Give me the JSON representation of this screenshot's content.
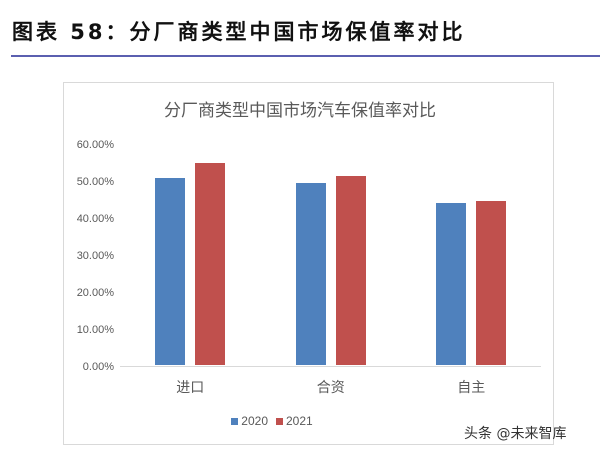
{
  "figure": {
    "title": "图表 58：分厂商类型中国市场保值率对比",
    "rule_color": "#5b5fb0"
  },
  "chart_data": {
    "type": "bar",
    "title": "分厂商类型中国市场汽车保值率对比",
    "categories": [
      "进口",
      "合资",
      "自主"
    ],
    "series": [
      {
        "name": "2020",
        "color": "#4f81bd",
        "values": [
          51.1,
          49.7,
          44.3
        ]
      },
      {
        "name": "2021",
        "color": "#c0504d",
        "values": [
          55.1,
          51.6,
          44.9
        ]
      }
    ],
    "xlabel": "",
    "ylabel": "",
    "ylim": [
      0,
      60
    ],
    "yticks": [
      "0.00%",
      "10.00%",
      "20.00%",
      "30.00%",
      "40.00%",
      "50.00%",
      "60.00%"
    ],
    "grid": false,
    "legend_position": "bottom"
  },
  "watermark": "头条 @未来智库"
}
